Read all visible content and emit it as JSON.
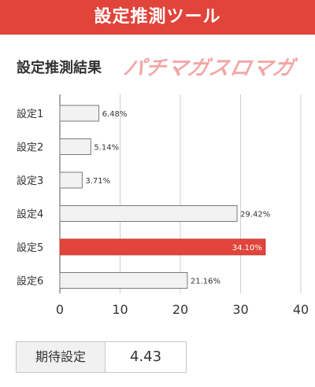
{
  "header": {
    "title": "設定推測ツール"
  },
  "section": {
    "title": "設定推測結果"
  },
  "brand": {
    "logo_text": "パチマガスロマガ"
  },
  "colors": {
    "header_bg": "#e0443a",
    "bar_default": "#f2f2f2",
    "bar_highlight": "#e0443a",
    "bar_border": "#7a7a7a"
  },
  "chart_data": {
    "type": "bar",
    "orientation": "horizontal",
    "categories": [
      "設定1",
      "設定2",
      "設定3",
      "設定4",
      "設定5",
      "設定6"
    ],
    "values": [
      6.48,
      5.14,
      3.71,
      29.42,
      34.1,
      21.16
    ],
    "value_labels": [
      "6.48%",
      "5.14%",
      "3.71%",
      "29.42%",
      "34.10%",
      "21.16%"
    ],
    "highlight_index": 4,
    "xlim": [
      0,
      40
    ],
    "xticks": [
      0,
      10,
      20,
      30,
      40
    ],
    "grid": true
  },
  "summary": {
    "label": "期待設定",
    "value": "4.43"
  }
}
